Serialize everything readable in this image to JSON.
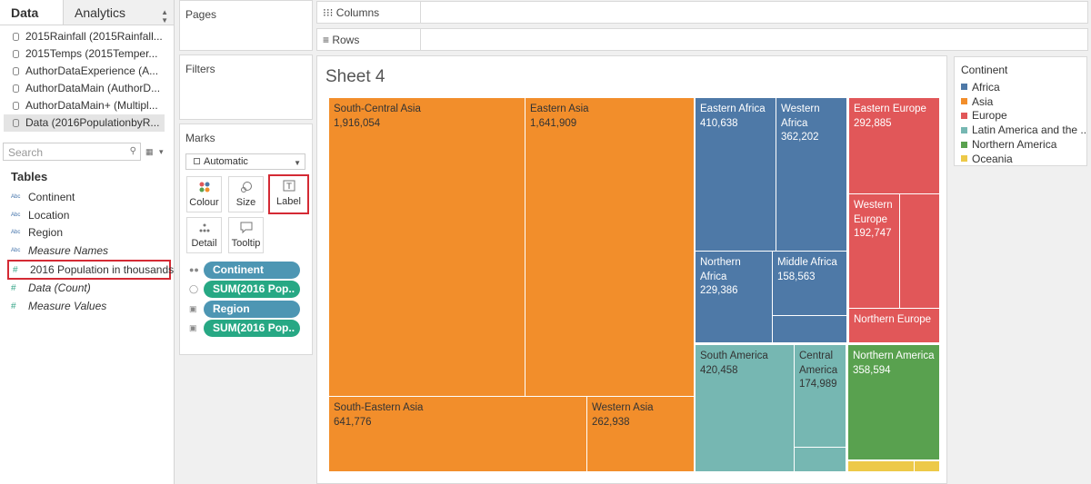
{
  "data_pane": {
    "tabs": {
      "data": "Data",
      "analytics": "Analytics"
    },
    "datasources": [
      "2015Rainfall (2015Rainfall...",
      "2015Temps (2015Temper...",
      "AuthorDataExperience (A...",
      "AuthorDataMain (AuthorD...",
      "AuthorDataMain+ (Multipl...",
      "Data (2016PopulationbyR..."
    ],
    "search_placeholder": "Search",
    "tables_title": "Tables",
    "fields": [
      {
        "name": "Continent",
        "type": "Abc"
      },
      {
        "name": "Location",
        "type": "Abc"
      },
      {
        "name": "Region",
        "type": "Abc"
      },
      {
        "name": "Measure Names",
        "type": "Abc"
      },
      {
        "name": "2016 Population in thousands",
        "type": "#"
      },
      {
        "name": "Data (Count)",
        "type": "#"
      },
      {
        "name": "Measure Values",
        "type": "#"
      }
    ]
  },
  "pages_card": {
    "title": "Pages"
  },
  "filters_card": {
    "title": "Filters"
  },
  "marks_card": {
    "title": "Marks",
    "mark_type": "Automatic",
    "buttons": {
      "colour": "Colour",
      "size": "Size",
      "label": "Label",
      "detail": "Detail",
      "tooltip": "Tooltip"
    },
    "pills": [
      "Continent",
      "SUM(2016 Pop..",
      "Region",
      "SUM(2016 Pop.."
    ]
  },
  "shelves": {
    "columns": "Columns",
    "rows": "Rows"
  },
  "sheet": {
    "title": "Sheet 4"
  },
  "legend": {
    "title": "Continent",
    "items": [
      {
        "label": "Africa",
        "color": "#4e79a7"
      },
      {
        "label": "Asia",
        "color": "#f28e2b"
      },
      {
        "label": "Europe",
        "color": "#e15759"
      },
      {
        "label": "Latin America and the ..",
        "color": "#76b7b2"
      },
      {
        "label": "Northern America",
        "color": "#59a14f"
      },
      {
        "label": "Oceania",
        "color": "#edc948"
      }
    ]
  },
  "treemap": {
    "tiles": [
      {
        "name": "South-Central Asia",
        "value": "1,916,054",
        "continent": "Asia"
      },
      {
        "name": "Eastern Asia",
        "value": "1,641,909",
        "continent": "Asia"
      },
      {
        "name": "South-Eastern Asia",
        "value": "641,776",
        "continent": "Asia"
      },
      {
        "name": "Western Asia",
        "value": "262,938",
        "continent": "Asia"
      },
      {
        "name": "Eastern Africa",
        "value": "410,638",
        "continent": "Africa"
      },
      {
        "name": "Western Africa",
        "value": "362,202",
        "continent": "Africa"
      },
      {
        "name": "Northern Africa",
        "value": "229,386",
        "continent": "Africa"
      },
      {
        "name": "Middle Africa",
        "value": "158,563",
        "continent": "Africa"
      },
      {
        "name": "Eastern Europe",
        "value": "292,885",
        "continent": "Europe"
      },
      {
        "name": "Western Europe",
        "value": "192,747",
        "continent": "Europe"
      },
      {
        "name": "Northern Europe",
        "value": "",
        "continent": "Europe"
      },
      {
        "name": "South America",
        "value": "420,458",
        "continent": "Latin America and the .."
      },
      {
        "name": "Central America",
        "value": "174,989",
        "continent": "Latin America and the .."
      },
      {
        "name": "Northern America",
        "value": "358,594",
        "continent": "Northern America"
      }
    ]
  }
}
